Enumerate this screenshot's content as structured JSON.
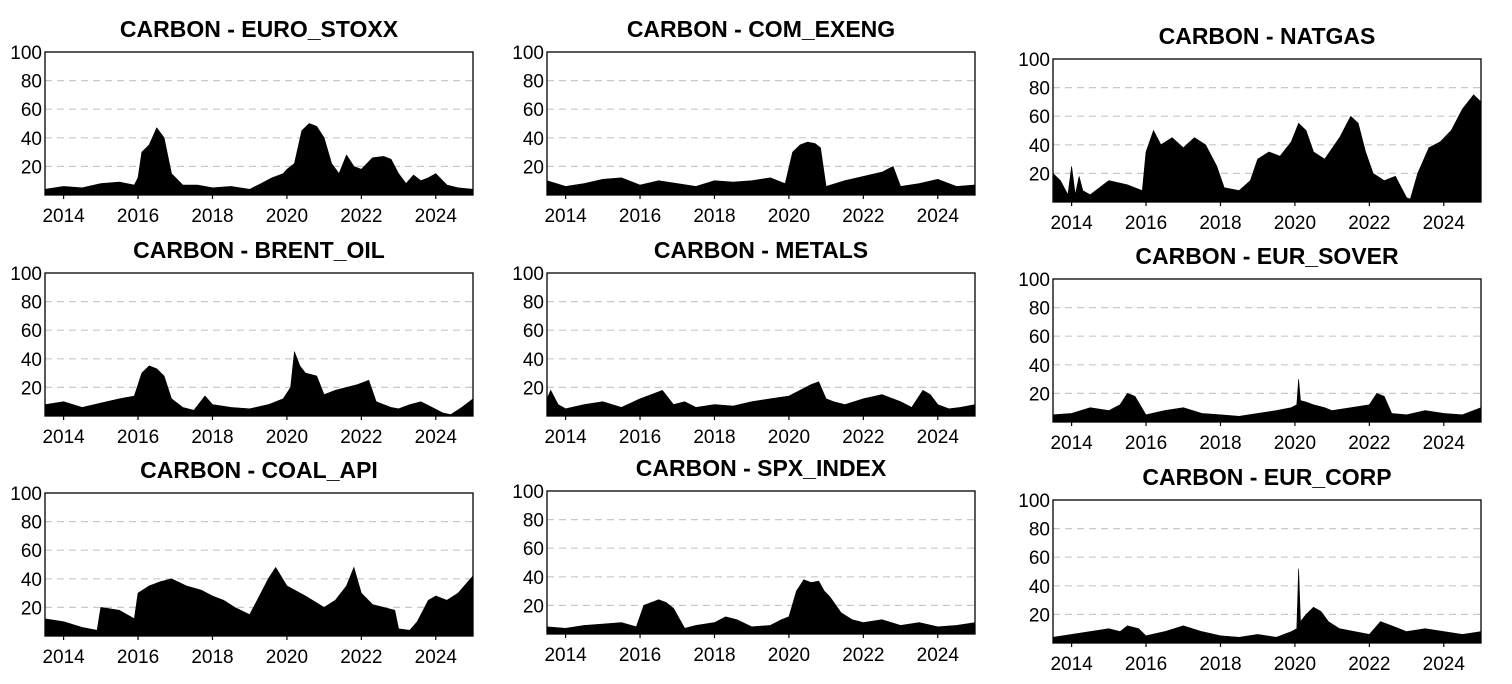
{
  "figure": {
    "x_ticks": [
      "2014",
      "2016",
      "2018",
      "2020",
      "2022",
      "2024"
    ],
    "y_ticks": [
      "20",
      "40",
      "60",
      "80",
      "100"
    ]
  },
  "chart_data": [
    {
      "type": "area",
      "title": "CARBON - EURO_STOXX",
      "xlim": [
        2013.5,
        2025
      ],
      "ylim": [
        0,
        100
      ],
      "grid": true,
      "series": [
        {
          "x": [
            2013.5,
            2014.0,
            2014.5,
            2015.0,
            2015.5,
            2015.9,
            2016.0,
            2016.1,
            2016.3,
            2016.5,
            2016.7,
            2016.9,
            2017.2,
            2017.6,
            2018.0,
            2018.5,
            2019.0,
            2019.3,
            2019.6,
            2019.9,
            2020.0,
            2020.2,
            2020.4,
            2020.6,
            2020.8,
            2021.0,
            2021.2,
            2021.4,
            2021.6,
            2021.8,
            2022.0,
            2022.3,
            2022.6,
            2022.8,
            2023.0,
            2023.2,
            2023.4,
            2023.6,
            2023.8,
            2024.0,
            2024.3,
            2024.6,
            2025.0
          ],
          "y": [
            4,
            6,
            5,
            8,
            9,
            7,
            12,
            30,
            35,
            47,
            40,
            15,
            7,
            7,
            5,
            6,
            4,
            8,
            12,
            15,
            18,
            22,
            45,
            50,
            48,
            40,
            22,
            15,
            28,
            20,
            18,
            26,
            27,
            25,
            15,
            8,
            14,
            10,
            12,
            15,
            7,
            5,
            4
          ]
        }
      ]
    },
    {
      "type": "area",
      "title": "CARBON - COM_EXENG",
      "xlim": [
        2013.5,
        2025
      ],
      "ylim": [
        0,
        100
      ],
      "grid": true,
      "series": [
        {
          "x": [
            2013.5,
            2014.0,
            2014.5,
            2015.0,
            2015.5,
            2016.0,
            2016.5,
            2017.0,
            2017.5,
            2018.0,
            2018.5,
            2019.0,
            2019.5,
            2019.9,
            2020.1,
            2020.3,
            2020.5,
            2020.7,
            2020.85,
            2021.0,
            2021.5,
            2022.0,
            2022.5,
            2022.8,
            2023.0,
            2023.5,
            2024.0,
            2024.5,
            2025.0
          ],
          "y": [
            10,
            6,
            8,
            11,
            12,
            7,
            10,
            8,
            6,
            10,
            9,
            10,
            12,
            8,
            30,
            35,
            37,
            36,
            33,
            6,
            10,
            13,
            16,
            20,
            6,
            8,
            11,
            6,
            7
          ]
        }
      ]
    },
    {
      "type": "area",
      "title": "CARBON - NATGAS",
      "xlim": [
        2013.5,
        2025
      ],
      "ylim": [
        0,
        100
      ],
      "grid": true,
      "series": [
        {
          "x": [
            2013.5,
            2013.7,
            2013.9,
            2014.0,
            2014.1,
            2014.2,
            2014.3,
            2014.5,
            2015.0,
            2015.5,
            2015.9,
            2016.0,
            2016.2,
            2016.4,
            2016.7,
            2017.0,
            2017.3,
            2017.6,
            2017.9,
            2018.1,
            2018.5,
            2018.8,
            2019.0,
            2019.3,
            2019.6,
            2019.9,
            2020.1,
            2020.3,
            2020.5,
            2020.8,
            2021.2,
            2021.5,
            2021.7,
            2021.9,
            2022.1,
            2022.4,
            2022.7,
            2023.0,
            2023.1,
            2023.3,
            2023.6,
            2023.9,
            2024.2,
            2024.5,
            2024.8,
            2025.0
          ],
          "y": [
            20,
            15,
            5,
            25,
            5,
            18,
            8,
            5,
            15,
            12,
            8,
            35,
            50,
            40,
            45,
            38,
            45,
            40,
            25,
            10,
            8,
            15,
            30,
            35,
            32,
            42,
            55,
            50,
            35,
            30,
            45,
            60,
            55,
            35,
            20,
            15,
            18,
            3,
            2,
            20,
            38,
            42,
            50,
            65,
            75,
            70
          ]
        }
      ]
    },
    {
      "type": "area",
      "title": "CARBON - BRENT_OIL",
      "xlim": [
        2013.5,
        2025
      ],
      "ylim": [
        0,
        100
      ],
      "grid": true,
      "series": [
        {
          "x": [
            2013.5,
            2014.0,
            2014.5,
            2015.0,
            2015.5,
            2015.9,
            2016.1,
            2016.3,
            2016.5,
            2016.7,
            2016.9,
            2017.2,
            2017.5,
            2017.8,
            2018.0,
            2018.5,
            2019.0,
            2019.5,
            2019.9,
            2020.1,
            2020.2,
            2020.35,
            2020.5,
            2020.8,
            2021.0,
            2021.3,
            2021.6,
            2021.9,
            2022.2,
            2022.4,
            2022.8,
            2023.0,
            2023.3,
            2023.6,
            2023.9,
            2024.2,
            2024.4,
            2024.7,
            2025.0
          ],
          "y": [
            8,
            10,
            6,
            9,
            12,
            14,
            30,
            35,
            33,
            28,
            12,
            6,
            4,
            14,
            8,
            6,
            5,
            8,
            12,
            20,
            45,
            35,
            30,
            28,
            15,
            18,
            20,
            22,
            25,
            10,
            6,
            5,
            8,
            10,
            6,
            2,
            1,
            6,
            12
          ]
        }
      ]
    },
    {
      "type": "area",
      "title": "CARBON - METALS",
      "xlim": [
        2013.5,
        2025
      ],
      "ylim": [
        0,
        100
      ],
      "grid": true,
      "series": [
        {
          "x": [
            2013.5,
            2013.6,
            2013.8,
            2014.0,
            2014.5,
            2015.0,
            2015.5,
            2016.0,
            2016.3,
            2016.6,
            2016.9,
            2017.2,
            2017.5,
            2018.0,
            2018.5,
            2019.0,
            2019.5,
            2020.0,
            2020.3,
            2020.6,
            2020.8,
            2021.0,
            2021.2,
            2021.5,
            2022.0,
            2022.5,
            2023.0,
            2023.3,
            2023.6,
            2023.8,
            2024.0,
            2024.3,
            2024.6,
            2025.0
          ],
          "y": [
            12,
            18,
            8,
            5,
            8,
            10,
            6,
            12,
            15,
            18,
            8,
            10,
            6,
            8,
            7,
            10,
            12,
            14,
            18,
            22,
            24,
            12,
            10,
            8,
            12,
            15,
            10,
            6,
            18,
            15,
            8,
            5,
            6,
            8
          ]
        }
      ]
    },
    {
      "type": "area",
      "title": "CARBON - EUR_SOVER",
      "xlim": [
        2013.5,
        2025
      ],
      "ylim": [
        0,
        100
      ],
      "grid": true,
      "series": [
        {
          "x": [
            2013.5,
            2014.0,
            2014.5,
            2015.0,
            2015.3,
            2015.5,
            2015.7,
            2016.0,
            2016.5,
            2017.0,
            2017.5,
            2018.0,
            2018.5,
            2019.0,
            2019.5,
            2019.9,
            2020.05,
            2020.1,
            2020.15,
            2020.3,
            2020.5,
            2020.8,
            2021.0,
            2021.5,
            2022.0,
            2022.2,
            2022.4,
            2022.6,
            2023.0,
            2023.5,
            2024.0,
            2024.5,
            2025.0
          ],
          "y": [
            5,
            6,
            10,
            8,
            12,
            20,
            18,
            5,
            8,
            10,
            6,
            5,
            4,
            6,
            8,
            10,
            12,
            30,
            15,
            14,
            12,
            10,
            8,
            10,
            12,
            20,
            18,
            6,
            5,
            8,
            6,
            5,
            10
          ]
        }
      ]
    },
    {
      "type": "area",
      "title": "CARBON - COAL_API",
      "xlim": [
        2013.5,
        2025
      ],
      "ylim": [
        0,
        100
      ],
      "grid": true,
      "series": [
        {
          "x": [
            2013.5,
            2014.0,
            2014.5,
            2014.9,
            2015.0,
            2015.5,
            2015.9,
            2016.0,
            2016.3,
            2016.6,
            2016.9,
            2017.3,
            2017.7,
            2018.0,
            2018.3,
            2018.6,
            2019.0,
            2019.3,
            2019.5,
            2019.7,
            2020.0,
            2020.5,
            2021.0,
            2021.3,
            2021.6,
            2021.8,
            2022.0,
            2022.3,
            2022.6,
            2022.9,
            2023.0,
            2023.3,
            2023.5,
            2023.8,
            2024.0,
            2024.3,
            2024.6,
            2025.0
          ],
          "y": [
            12,
            10,
            6,
            4,
            20,
            18,
            12,
            30,
            35,
            38,
            40,
            35,
            32,
            28,
            25,
            20,
            15,
            30,
            40,
            48,
            35,
            28,
            20,
            25,
            35,
            48,
            30,
            22,
            20,
            18,
            5,
            4,
            10,
            25,
            28,
            25,
            30,
            42
          ]
        }
      ]
    },
    {
      "type": "area",
      "title": "CARBON - SPX_INDEX",
      "xlim": [
        2013.5,
        2025
      ],
      "ylim": [
        0,
        100
      ],
      "grid": true,
      "series": [
        {
          "x": [
            2013.5,
            2014.0,
            2014.5,
            2015.0,
            2015.5,
            2015.9,
            2016.1,
            2016.3,
            2016.5,
            2016.7,
            2016.9,
            2017.2,
            2017.5,
            2018.0,
            2018.3,
            2018.6,
            2019.0,
            2019.5,
            2019.8,
            2020.0,
            2020.2,
            2020.4,
            2020.6,
            2020.8,
            2020.95,
            2021.1,
            2021.4,
            2021.7,
            2022.0,
            2022.5,
            2023.0,
            2023.5,
            2024.0,
            2024.5,
            2025.0
          ],
          "y": [
            5,
            4,
            6,
            7,
            8,
            5,
            20,
            22,
            24,
            22,
            18,
            4,
            6,
            8,
            12,
            10,
            5,
            6,
            10,
            12,
            30,
            38,
            36,
            37,
            30,
            26,
            15,
            10,
            8,
            10,
            6,
            8,
            5,
            6,
            8
          ]
        }
      ]
    },
    {
      "type": "area",
      "title": "CARBON - EUR_CORP",
      "xlim": [
        2013.5,
        2025
      ],
      "ylim": [
        0,
        100
      ],
      "grid": true,
      "series": [
        {
          "x": [
            2013.5,
            2014.0,
            2014.5,
            2015.0,
            2015.3,
            2015.5,
            2015.8,
            2016.0,
            2016.5,
            2017.0,
            2017.5,
            2018.0,
            2018.5,
            2019.0,
            2019.5,
            2019.9,
            2020.05,
            2020.1,
            2020.15,
            2020.3,
            2020.5,
            2020.7,
            2020.9,
            2021.2,
            2021.6,
            2022.0,
            2022.3,
            2022.6,
            2023.0,
            2023.5,
            2024.0,
            2024.5,
            2025.0
          ],
          "y": [
            4,
            6,
            8,
            10,
            8,
            12,
            10,
            5,
            8,
            12,
            8,
            5,
            4,
            6,
            4,
            8,
            10,
            52,
            15,
            20,
            25,
            22,
            15,
            10,
            8,
            6,
            15,
            12,
            8,
            10,
            8,
            6,
            8
          ]
        }
      ]
    }
  ]
}
